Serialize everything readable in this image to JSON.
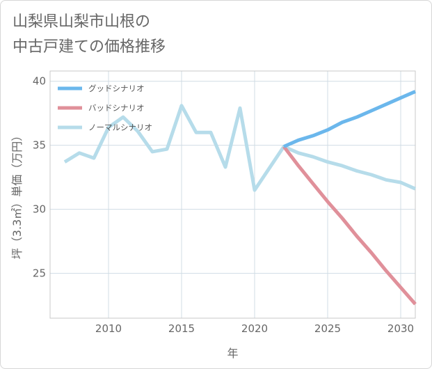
{
  "title_line1": "山梨県山梨市山根の",
  "title_line2": "中古戸建ての価格推移",
  "chart_data": {
    "type": "line",
    "xlabel": "年",
    "ylabel": "坪（3.3㎡）単価（万円）",
    "xlim": [
      2006,
      2031
    ],
    "ylim": [
      21.5,
      40.8
    ],
    "xticks": [
      2010,
      2015,
      2020,
      2025,
      2030
    ],
    "yticks": [
      25,
      30,
      35,
      40
    ],
    "grid": true,
    "legend_position": "top-left",
    "series": [
      {
        "name": "グッドシナリオ",
        "color": "#6bb7ec",
        "x": [
          2022,
          2023,
          2024,
          2025,
          2026,
          2027,
          2028,
          2029,
          2030,
          2031
        ],
        "y": [
          34.9,
          35.4,
          35.75,
          36.2,
          36.8,
          37.2,
          37.7,
          38.2,
          38.7,
          39.2
        ]
      },
      {
        "name": "バッドシナリオ",
        "color": "#e0909a",
        "x": [
          2022,
          2023,
          2024,
          2025,
          2026,
          2027,
          2028,
          2029,
          2030,
          2031
        ],
        "y": [
          34.9,
          33.4,
          32.0,
          30.6,
          29.3,
          27.9,
          26.6,
          25.2,
          23.9,
          22.6
        ]
      },
      {
        "name": "ノーマルシナリオ",
        "color": "#b6dcea",
        "x": [
          2007,
          2008,
          2009,
          2010,
          2011,
          2012,
          2013,
          2014,
          2015,
          2016,
          2017,
          2018,
          2019,
          2020,
          2021,
          2022,
          2023,
          2024,
          2025,
          2026,
          2027,
          2028,
          2029,
          2030,
          2031
        ],
        "y": [
          33.7,
          34.4,
          34.0,
          36.4,
          37.2,
          36.1,
          34.5,
          34.7,
          38.1,
          36.0,
          36.0,
          33.3,
          37.9,
          31.5,
          33.2,
          34.9,
          34.4,
          34.1,
          33.7,
          33.4,
          33.0,
          32.7,
          32.3,
          32.1,
          31.6
        ]
      }
    ]
  }
}
